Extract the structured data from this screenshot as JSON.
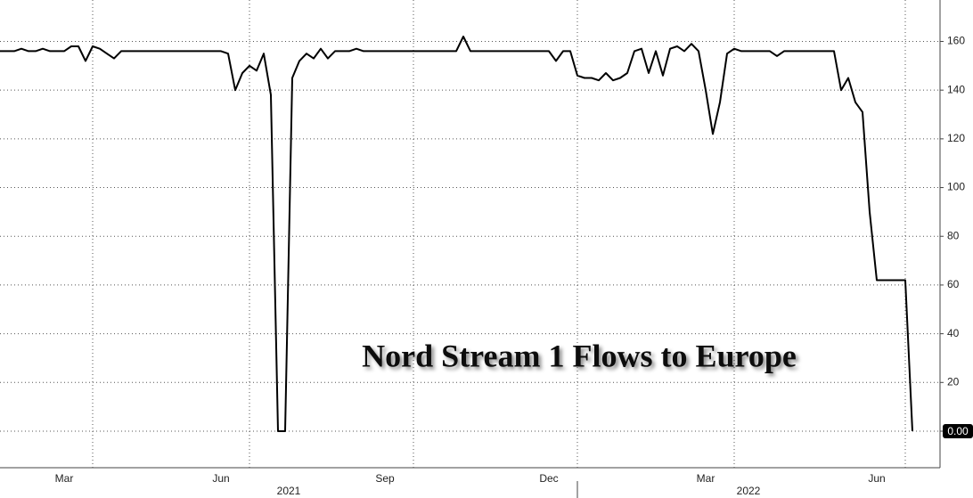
{
  "chart_data": {
    "type": "line",
    "title": "Nord Stream 1 Flows to Europe",
    "categories": [
      null,
      null,
      null,
      null,
      null,
      null,
      null,
      null,
      null,
      "Mar",
      null,
      null,
      null,
      null,
      null,
      null,
      null,
      null,
      null,
      null,
      null,
      null,
      null,
      null,
      null,
      null,
      null,
      null,
      null,
      null,
      null,
      "Jun",
      null,
      null,
      null,
      null,
      null,
      null,
      null,
      null,
      null,
      null,
      null,
      null,
      null,
      null,
      null,
      null,
      null,
      null,
      null,
      null,
      null,
      null,
      "Sep",
      null,
      null,
      null,
      null,
      null,
      null,
      null,
      null,
      null,
      null,
      null,
      null,
      null,
      null,
      null,
      null,
      null,
      null,
      null,
      null,
      null,
      null,
      "Dec",
      null,
      null,
      null,
      null,
      null,
      null,
      null,
      null,
      null,
      null,
      null,
      null,
      null,
      null,
      null,
      null,
      null,
      null,
      null,
      null,
      null,
      "Mar",
      null,
      null,
      null,
      null,
      null,
      null,
      null,
      null,
      null,
      null,
      null,
      null,
      null,
      null,
      null,
      null,
      null,
      null,
      null,
      null,
      null,
      null,
      null,
      "Jun",
      null,
      null,
      null,
      null,
      null
    ],
    "x_groups": [
      {
        "label": "2021",
        "count": 81
      },
      {
        "label": "2022",
        "count": 48
      }
    ],
    "values": [
      156,
      156,
      156,
      157,
      156,
      156,
      157,
      156,
      156,
      156,
      158,
      158,
      152,
      158,
      157,
      155,
      153,
      156,
      156,
      156,
      156,
      156,
      156,
      156,
      156,
      156,
      156,
      156,
      156,
      156,
      156,
      156,
      155,
      140,
      147,
      150,
      148,
      155,
      138,
      0,
      0,
      145,
      152,
      155,
      153,
      157,
      153,
      156,
      156,
      156,
      157,
      156,
      156,
      156,
      156,
      156,
      156,
      156,
      156,
      156,
      156,
      156,
      156,
      156,
      156,
      162,
      156,
      156,
      156,
      156,
      156,
      156,
      156,
      156,
      156,
      156,
      156,
      156,
      152,
      156,
      156,
      146,
      145,
      145,
      144,
      147,
      144,
      145,
      147,
      156,
      157,
      147,
      156,
      146,
      157,
      158,
      156,
      159,
      156,
      140,
      122,
      135,
      155,
      157,
      156,
      156,
      156,
      156,
      156,
      154,
      156,
      156,
      156,
      156,
      156,
      156,
      156,
      156,
      140,
      145,
      135,
      131,
      90,
      62,
      62,
      62,
      62,
      62,
      0
    ],
    "color": "#000000",
    "ylim": [
      -15,
      177
    ],
    "yticks": [
      {
        "value": 0,
        "label": "0.00"
      },
      20,
      40,
      60,
      80,
      100,
      120,
      140,
      160
    ],
    "grid": true
  }
}
